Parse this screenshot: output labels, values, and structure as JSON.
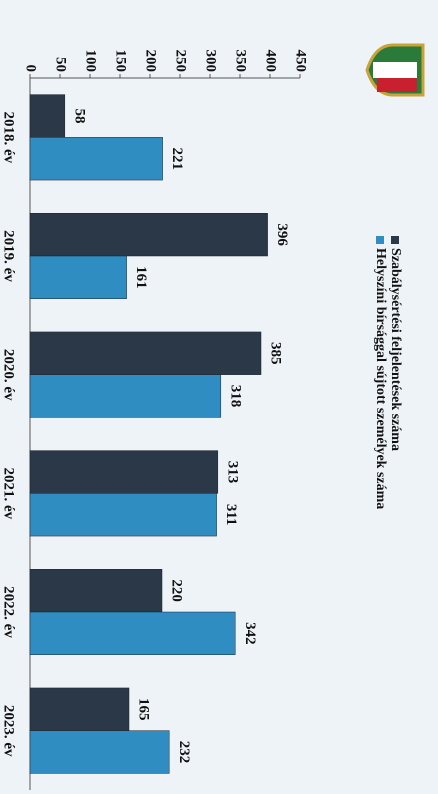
{
  "chart_data": {
    "type": "bar",
    "categories": [
      "2018. év",
      "2019. év",
      "2020. év",
      "2021. év",
      "2022. év",
      "2023. év"
    ],
    "series": [
      {
        "name": "Szabálysértési feljelentések száma",
        "color": "#2b3847",
        "values": [
          58,
          396,
          385,
          313,
          220,
          165
        ]
      },
      {
        "name": "Helyszíni bírsággal sújtott személyek száma",
        "color": "#2f8dc2",
        "values": [
          221,
          161,
          318,
          311,
          342,
          232
        ]
      }
    ],
    "ylim": [
      0,
      450
    ],
    "yticks": [
      0,
      50,
      100,
      150,
      200,
      250,
      300,
      350,
      400,
      450
    ]
  }
}
